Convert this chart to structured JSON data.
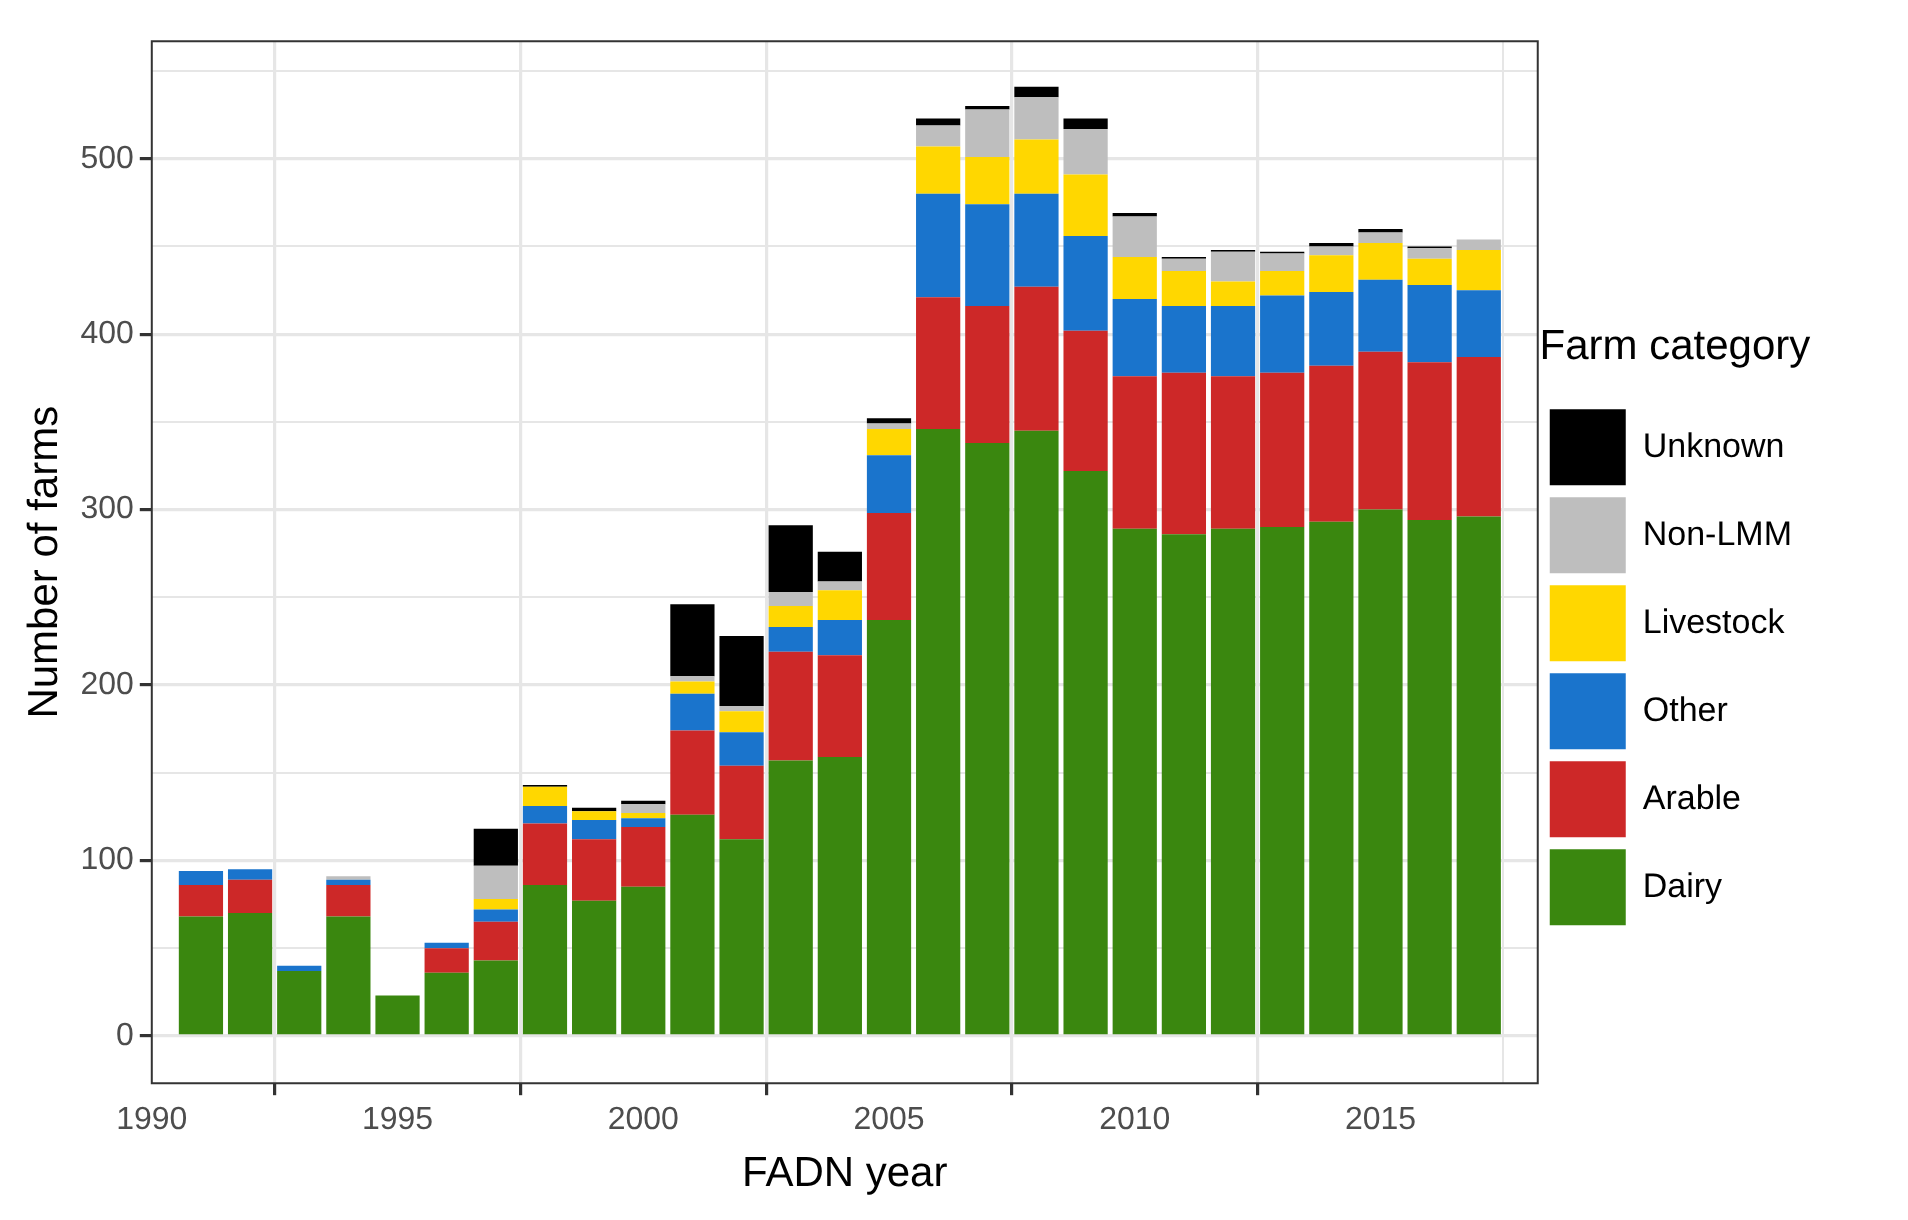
{
  "chart_data": {
    "type": "bar",
    "stacked": true,
    "xlabel": "FADN year",
    "ylabel": "Number of farms",
    "legend_title": "Farm category",
    "legend": "right",
    "grid": true,
    "x": [
      1991,
      1992,
      1993,
      1994,
      1995,
      1996,
      1997,
      1998,
      1999,
      2000,
      2001,
      2002,
      2003,
      2004,
      2005,
      2006,
      2007,
      2008,
      2009,
      2010,
      2011,
      2012,
      2013,
      2014,
      2015,
      2016,
      2017
    ],
    "xlim": [
      1990,
      2018.2
    ],
    "xticks": [
      1990,
      1995,
      2000,
      2005,
      2010,
      2015
    ],
    "ylim": [
      -27,
      567
    ],
    "yticks": [
      0,
      {
        "value": 50,
        "label": null
      },
      100,
      {
        "value": 150,
        "label": null
      },
      200,
      {
        "value": 250,
        "label": null
      },
      300,
      {
        "value": 350,
        "label": null
      },
      400,
      {
        "value": 450,
        "label": null
      },
      500,
      {
        "value": 550,
        "label": null
      }
    ],
    "series": [
      {
        "name": "Dairy",
        "color": "#3a870f",
        "values": [
          68,
          70,
          37,
          68,
          23,
          36,
          43,
          86,
          77,
          85,
          126,
          112,
          157,
          159,
          237,
          346,
          338,
          345,
          322,
          289,
          286,
          289,
          290,
          293,
          300,
          294,
          296
        ]
      },
      {
        "name": "Arable",
        "color": "#cd2828",
        "values": [
          18,
          19,
          0,
          18,
          0,
          14,
          22,
          35,
          35,
          34,
          48,
          42,
          62,
          58,
          61,
          75,
          78,
          82,
          80,
          87,
          92,
          87,
          88,
          89,
          90,
          90,
          91
        ]
      },
      {
        "name": "Other",
        "color": "#1a74cc",
        "values": [
          8,
          6,
          3,
          3,
          0,
          3,
          7,
          10,
          11,
          5,
          21,
          19,
          14,
          20,
          33,
          59,
          58,
          53,
          54,
          44,
          38,
          40,
          44,
          42,
          41,
          44,
          38
        ]
      },
      {
        "name": "Livestock",
        "color": "#ffd700",
        "values": [
          0,
          0,
          0,
          0,
          0,
          0,
          6,
          11,
          5,
          3,
          7,
          12,
          12,
          17,
          15,
          27,
          27,
          31,
          35,
          24,
          20,
          14,
          14,
          21,
          21,
          15,
          23
        ]
      },
      {
        "name": "Non-LMM",
        "color": "#bebebe",
        "values": [
          0,
          0,
          0,
          2,
          0,
          0,
          19,
          0,
          0,
          5,
          3,
          3,
          8,
          5,
          3,
          12,
          27,
          24,
          26,
          23,
          7,
          17,
          10,
          5,
          6,
          6,
          6
        ]
      },
      {
        "name": "Unknown",
        "color": "#000000",
        "values": [
          0,
          0,
          0,
          0,
          0,
          0,
          21,
          1,
          2,
          2,
          41,
          40,
          38,
          17,
          3,
          4,
          2,
          6,
          6,
          2,
          1,
          1,
          1,
          2,
          2,
          1,
          0
        ]
      }
    ]
  }
}
